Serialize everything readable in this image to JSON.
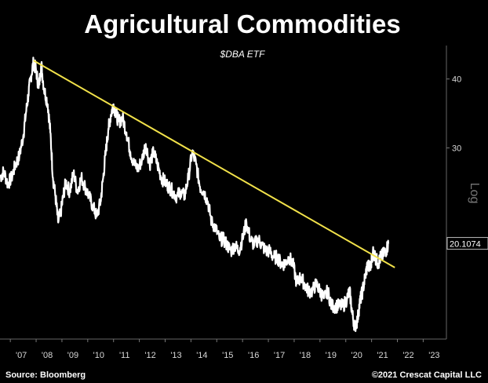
{
  "chart_data": {
    "type": "line",
    "title": "Agricultural Commodities",
    "subtitle": "$DBA ETF",
    "source": "Source: Bloomberg",
    "copyright": "©2021 Crescat Capital LLC",
    "scale_label": "Log",
    "y_scale": "log",
    "ylim": [
      13.5,
      46
    ],
    "xlim": [
      2006.6,
      2023.9
    ],
    "x_ticks": [
      {
        "label": "'07",
        "value": 2007
      },
      {
        "label": "'08",
        "value": 2008
      },
      {
        "label": "'09",
        "value": 2009
      },
      {
        "label": "'10",
        "value": 2010
      },
      {
        "label": "'11",
        "value": 2011
      },
      {
        "label": "'12",
        "value": 2012
      },
      {
        "label": "'13",
        "value": 2013
      },
      {
        "label": "'14",
        "value": 2014
      },
      {
        "label": "'15",
        "value": 2015
      },
      {
        "label": "'16",
        "value": 2016
      },
      {
        "label": "'17",
        "value": 2017
      },
      {
        "label": "'18",
        "value": 2018
      },
      {
        "label": "'19",
        "value": 2019
      },
      {
        "label": "'20",
        "value": 2020
      },
      {
        "label": "'21",
        "value": 2021
      },
      {
        "label": "'22",
        "value": 2022
      },
      {
        "label": "'23",
        "value": 2023
      }
    ],
    "y_ticks": [
      {
        "label": "30",
        "value": 30
      },
      {
        "label": "40",
        "value": 40
      }
    ],
    "last_value_label": "20.1074",
    "series": [
      {
        "color": "#ffffff",
        "x": [
          2006.6,
          2006.75,
          2006.9,
          2007.05,
          2007.2,
          2007.35,
          2007.5,
          2007.6,
          2007.7,
          2007.8,
          2007.9,
          2008.0,
          2008.1,
          2008.2,
          2008.3,
          2008.45,
          2008.55,
          2008.65,
          2008.75,
          2008.85,
          2008.95,
          2009.05,
          2009.15,
          2009.3,
          2009.45,
          2009.6,
          2009.75,
          2009.9,
          2010.05,
          2010.2,
          2010.35,
          2010.5,
          2010.6,
          2010.7,
          2010.8,
          2010.9,
          2011.0,
          2011.1,
          2011.2,
          2011.35,
          2011.5,
          2011.65,
          2011.8,
          2011.95,
          2012.1,
          2012.25,
          2012.4,
          2012.55,
          2012.7,
          2012.85,
          2013.0,
          2013.15,
          2013.3,
          2013.45,
          2013.6,
          2013.75,
          2013.9,
          2014.05,
          2014.2,
          2014.35,
          2014.5,
          2014.65,
          2014.8,
          2014.95,
          2015.1,
          2015.25,
          2015.4,
          2015.55,
          2015.7,
          2015.85,
          2016.0,
          2016.15,
          2016.3,
          2016.45,
          2016.6,
          2016.75,
          2016.9,
          2017.05,
          2017.2,
          2017.35,
          2017.5,
          2017.65,
          2017.8,
          2017.95,
          2018.1,
          2018.25,
          2018.4,
          2018.55,
          2018.7,
          2018.85,
          2019.0,
          2019.15,
          2019.3,
          2019.45,
          2019.6,
          2019.75,
          2019.9,
          2020.05,
          2020.15,
          2020.25,
          2020.35,
          2020.45,
          2020.55,
          2020.65,
          2020.75,
          2020.85,
          2020.95,
          2021.05,
          2021.15,
          2021.25,
          2021.35,
          2021.45,
          2021.55,
          2021.65
        ],
        "values": [
          26.5,
          27.2,
          25.8,
          26.5,
          28.0,
          29.0,
          31.5,
          34.5,
          37.5,
          40.5,
          42.8,
          41.5,
          38.5,
          42.5,
          38.5,
          36.0,
          32.0,
          26.5,
          24.5,
          22.0,
          22.8,
          24.5,
          26.0,
          25.0,
          27.0,
          25.0,
          26.5,
          25.5,
          24.5,
          23.5,
          22.5,
          24.0,
          26.5,
          29.5,
          32.5,
          34.5,
          36.0,
          34.5,
          33.5,
          34.0,
          32.0,
          29.5,
          28.0,
          27.5,
          28.5,
          30.5,
          28.0,
          29.5,
          28.0,
          26.5,
          26.0,
          25.5,
          25.0,
          24.5,
          25.0,
          24.5,
          26.5,
          29.5,
          28.0,
          25.5,
          25.0,
          24.0,
          22.0,
          21.5,
          20.5,
          20.5,
          20.0,
          19.5,
          20.0,
          19.5,
          20.5,
          22.0,
          20.5,
          20.0,
          20.5,
          20.0,
          19.5,
          19.5,
          19.0,
          19.0,
          18.5,
          18.5,
          19.0,
          18.5,
          17.0,
          17.5,
          17.0,
          16.5,
          16.5,
          17.0,
          16.5,
          16.0,
          16.5,
          15.5,
          15.5,
          15.5,
          15.5,
          16.0,
          16.5,
          15.0,
          14.2,
          14.6,
          15.8,
          16.5,
          17.5,
          18.5,
          18.0,
          19.5,
          19.0,
          18.5,
          19.0,
          19.2,
          19.5,
          20.1
        ]
      },
      {
        "color": "#f2e24a",
        "x": [
          2007.9,
          2021.9
        ],
        "values": [
          43.2,
          18.2
        ]
      }
    ]
  }
}
